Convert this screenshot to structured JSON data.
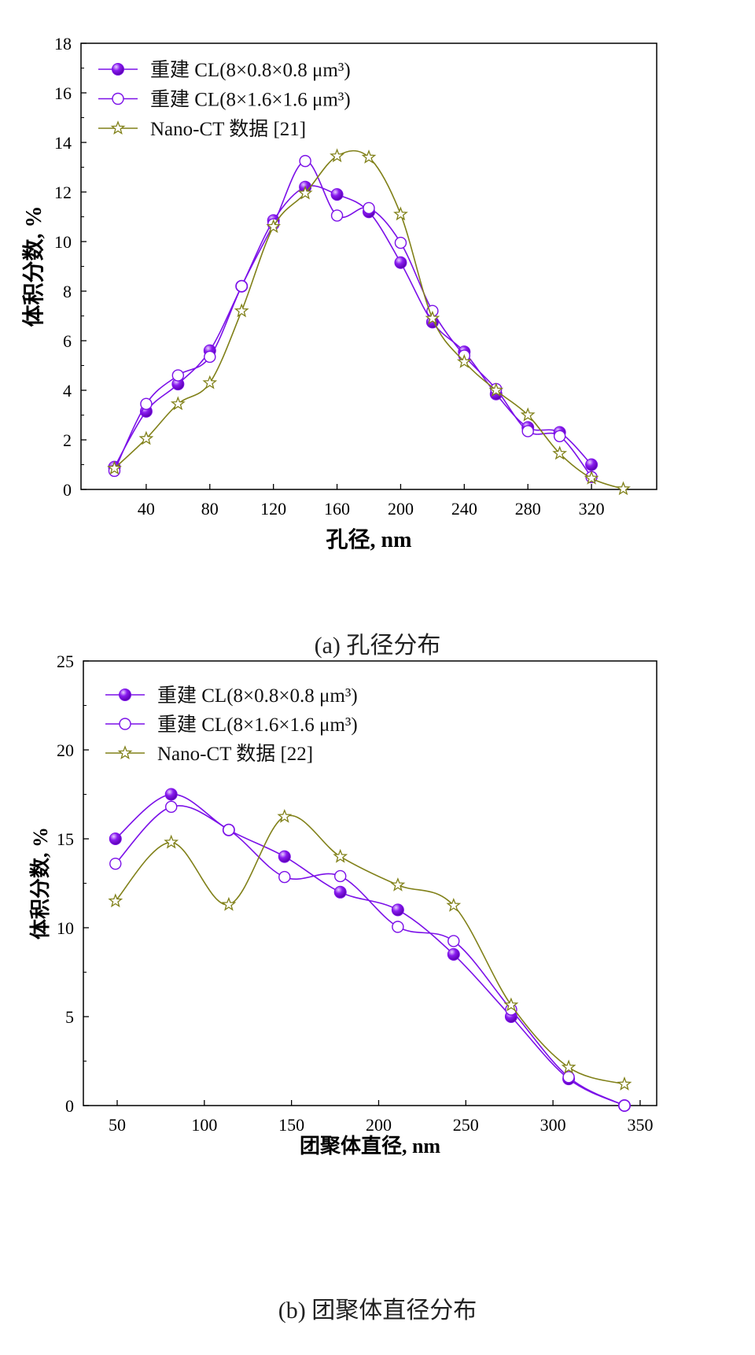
{
  "colors": {
    "series1": "#7b10e8",
    "series2": "#7b10e8",
    "series3": "#808018",
    "axis": "#000000"
  },
  "chart_data": [
    {
      "type": "line",
      "caption": "(a) 孔径分布",
      "xlabel": "孔径, nm",
      "ylabel": "体积分数, %",
      "xlim": [
        -1,
        361
      ],
      "ylim": [
        0,
        18
      ],
      "xticks": [
        40,
        80,
        120,
        160,
        200,
        240,
        280,
        320
      ],
      "yticks": [
        0,
        2,
        4,
        6,
        8,
        10,
        12,
        14,
        16,
        18
      ],
      "grid": false,
      "legend_position": "top-left",
      "series": [
        {
          "name": "重建 CL(8×0.8×0.8 μm³)",
          "marker": "filled-circle",
          "x": [
            20,
            40,
            60,
            80,
            100,
            120,
            140,
            160,
            180,
            200,
            220,
            240,
            260,
            280,
            300,
            320
          ],
          "y": [
            0.9,
            3.15,
            4.25,
            5.6,
            8.2,
            10.85,
            12.2,
            11.9,
            11.2,
            9.15,
            6.75,
            5.55,
            3.85,
            2.5,
            2.3,
            1.0
          ]
        },
        {
          "name": "重建 CL(8×1.6×1.6 μm³)",
          "marker": "open-circle",
          "x": [
            20,
            40,
            60,
            80,
            100,
            120,
            140,
            160,
            180,
            200,
            220,
            240,
            260,
            280,
            300,
            320
          ],
          "y": [
            0.75,
            3.45,
            4.6,
            5.35,
            8.2,
            10.7,
            13.25,
            11.05,
            11.35,
            9.95,
            7.2,
            5.4,
            4.05,
            2.35,
            2.15,
            0.5
          ]
        },
        {
          "name": "Nano-CT 数据 [21]",
          "marker": "open-star",
          "x": [
            20,
            40,
            60,
            80,
            100,
            120,
            140,
            160,
            180,
            200,
            220,
            240,
            260,
            280,
            300,
            320,
            340
          ],
          "y": [
            0.85,
            2.05,
            3.45,
            4.3,
            7.2,
            10.6,
            11.95,
            13.45,
            13.4,
            11.1,
            6.9,
            5.15,
            4.0,
            3.0,
            1.45,
            0.45,
            0.02
          ]
        }
      ]
    },
    {
      "type": "line",
      "caption": "(b) 团聚体直径分布",
      "xlabel": "团聚体直径, nm",
      "ylabel": "体积分数, %",
      "xlim": [
        30.6,
        359.5
      ],
      "ylim": [
        0,
        25
      ],
      "xticks": [
        50,
        100,
        150,
        200,
        250,
        300,
        350
      ],
      "yticks": [
        0,
        5,
        10,
        15,
        20,
        25
      ],
      "grid": false,
      "legend_position": "top-left",
      "series": [
        {
          "name": "重建 CL(8×0.8×0.8 μm³)",
          "marker": "filled-circle",
          "x": [
            49,
            81,
            114,
            146,
            178,
            211,
            243,
            276,
            309,
            341
          ],
          "y": [
            15.0,
            17.5,
            15.5,
            14.0,
            12.0,
            11.0,
            8.5,
            5.0,
            1.5,
            0.0
          ]
        },
        {
          "name": "重建 CL(8×1.6×1.6 μm³)",
          "marker": "open-circle",
          "x": [
            49,
            81,
            114,
            146,
            178,
            211,
            243,
            276,
            309,
            341
          ],
          "y": [
            13.6,
            16.8,
            15.5,
            12.85,
            12.9,
            10.05,
            9.25,
            5.4,
            1.6,
            0.0
          ]
        },
        {
          "name": "Nano-CT 数据 [22]",
          "marker": "open-star",
          "x": [
            49,
            81,
            114,
            146,
            178,
            211,
            243,
            276,
            309,
            341
          ],
          "y": [
            11.5,
            14.8,
            11.3,
            16.25,
            14.0,
            12.4,
            11.25,
            5.65,
            2.15,
            1.2
          ]
        }
      ]
    }
  ]
}
